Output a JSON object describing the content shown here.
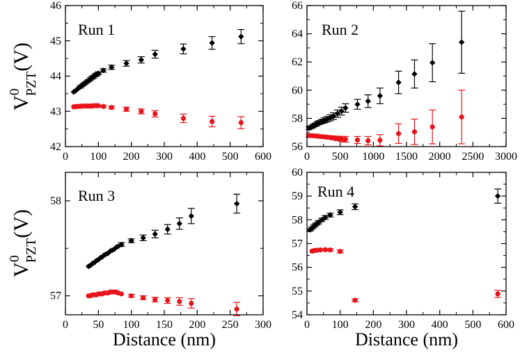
{
  "figure": {
    "x_axis_label": "Distance (nm)",
    "y_axis_label": {
      "main": "V",
      "superscript": "0",
      "subscript": "PZT",
      "unit": "(V)"
    }
  },
  "colors": {
    "series_black": "#000000",
    "series_red": "#e8141b",
    "axis": "#000000",
    "background": "#ffffff"
  },
  "chart_data": [
    {
      "type": "scatter",
      "title": "Run 1",
      "xlabel": "",
      "ylabel": "V0PZT(V)",
      "xlim": [
        0,
        600
      ],
      "ylim": [
        42,
        46
      ],
      "xticks": [
        0,
        100,
        200,
        300,
        400,
        500,
        600
      ],
      "yticks": [
        42,
        43,
        44,
        45,
        46
      ],
      "series": [
        {
          "name": "black",
          "marker": "diamond",
          "color": "#000000",
          "x": [
            25,
            30,
            35,
            40,
            45,
            50,
            55,
            60,
            65,
            70,
            75,
            80,
            85,
            90,
            95,
            100,
            115,
            140,
            185,
            230,
            272,
            358,
            445,
            533
          ],
          "y": [
            43.55,
            43.58,
            43.62,
            43.66,
            43.69,
            43.73,
            43.77,
            43.8,
            43.84,
            43.87,
            43.91,
            43.95,
            43.98,
            44.02,
            44.05,
            44.08,
            44.16,
            44.25,
            44.36,
            44.46,
            44.62,
            44.77,
            44.94,
            45.12
          ],
          "err": [
            0.02,
            0.02,
            0.02,
            0.02,
            0.03,
            0.03,
            0.03,
            0.03,
            0.03,
            0.03,
            0.04,
            0.04,
            0.04,
            0.04,
            0.04,
            0.04,
            0.05,
            0.06,
            0.08,
            0.09,
            0.11,
            0.14,
            0.18,
            0.2
          ]
        },
        {
          "name": "red",
          "marker": "circle",
          "color": "#e8141b",
          "x": [
            25,
            30,
            35,
            40,
            45,
            50,
            55,
            60,
            65,
            70,
            75,
            80,
            85,
            90,
            95,
            100,
            115,
            140,
            185,
            230,
            272,
            358,
            445,
            533
          ],
          "y": [
            43.13,
            43.13,
            43.14,
            43.14,
            43.14,
            43.15,
            43.15,
            43.15,
            43.15,
            43.15,
            43.15,
            43.15,
            43.16,
            43.16,
            43.16,
            43.16,
            43.14,
            43.11,
            43.06,
            43.0,
            42.93,
            42.8,
            42.71,
            42.68
          ],
          "err": [
            0.02,
            0.02,
            0.02,
            0.02,
            0.02,
            0.02,
            0.02,
            0.02,
            0.02,
            0.02,
            0.02,
            0.02,
            0.02,
            0.02,
            0.02,
            0.02,
            0.03,
            0.04,
            0.06,
            0.07,
            0.09,
            0.12,
            0.15,
            0.17
          ]
        }
      ]
    },
    {
      "type": "scatter",
      "title": "Run 2",
      "xlabel": "",
      "ylabel": "",
      "xlim": [
        0,
        3000
      ],
      "ylim": [
        56,
        66
      ],
      "xticks": [
        0,
        500,
        1000,
        1500,
        2000,
        2500,
        3000
      ],
      "yticks": [
        56,
        58,
        60,
        62,
        64,
        66
      ],
      "series": [
        {
          "name": "black",
          "marker": "diamond",
          "color": "#000000",
          "x": [
            30,
            60,
            90,
            120,
            150,
            180,
            220,
            260,
            300,
            350,
            400,
            460,
            520,
            580,
            760,
            920,
            1100,
            1380,
            1620,
            1890,
            2330
          ],
          "y": [
            57.3,
            57.38,
            57.46,
            57.54,
            57.62,
            57.7,
            57.78,
            57.86,
            57.94,
            58.04,
            58.16,
            58.34,
            58.52,
            58.74,
            59.0,
            59.22,
            59.6,
            60.55,
            61.15,
            61.95,
            63.4
          ],
          "err": [
            0.1,
            0.1,
            0.12,
            0.12,
            0.14,
            0.14,
            0.16,
            0.18,
            0.2,
            0.22,
            0.24,
            0.26,
            0.28,
            0.3,
            0.35,
            0.45,
            0.55,
            0.8,
            1.0,
            1.35,
            2.2
          ]
        },
        {
          "name": "red",
          "marker": "circle",
          "color": "#e8141b",
          "x": [
            30,
            60,
            90,
            120,
            150,
            180,
            220,
            260,
            300,
            350,
            400,
            460,
            520,
            580,
            760,
            920,
            1100,
            1380,
            1620,
            1890,
            2330
          ],
          "y": [
            56.78,
            56.78,
            56.77,
            56.76,
            56.75,
            56.73,
            56.71,
            56.69,
            56.67,
            56.65,
            56.62,
            56.58,
            56.55,
            56.52,
            56.47,
            56.42,
            56.45,
            56.92,
            57.05,
            57.4,
            58.1
          ],
          "err": [
            0.1,
            0.1,
            0.1,
            0.1,
            0.1,
            0.1,
            0.1,
            0.1,
            0.12,
            0.12,
            0.14,
            0.16,
            0.18,
            0.2,
            0.25,
            0.3,
            0.4,
            0.7,
            0.9,
            1.2,
            1.9
          ]
        }
      ]
    },
    {
      "type": "scatter",
      "title": "Run 3",
      "xlabel": "Distance (nm)",
      "ylabel": "V0PZT(V)",
      "xlim": [
        0,
        300
      ],
      "ylim": [
        56.8,
        58.3
      ],
      "xticks": [
        0,
        50,
        100,
        150,
        200,
        250,
        300
      ],
      "yticks": [
        57,
        58
      ],
      "series": [
        {
          "name": "black",
          "marker": "diamond",
          "color": "#000000",
          "x": [
            35,
            38,
            41,
            44,
            47,
            50,
            53,
            56,
            59,
            62,
            65,
            68,
            71,
            74,
            77,
            80,
            85,
            100,
            118,
            136,
            155,
            173,
            191,
            260
          ],
          "y": [
            57.31,
            57.32,
            57.34,
            57.35,
            57.37,
            57.38,
            57.4,
            57.41,
            57.43,
            57.44,
            57.45,
            57.47,
            57.48,
            57.49,
            57.51,
            57.52,
            57.54,
            57.58,
            57.61,
            57.65,
            57.7,
            57.76,
            57.84,
            57.97
          ],
          "err": [
            0.01,
            0.01,
            0.01,
            0.01,
            0.01,
            0.01,
            0.01,
            0.01,
            0.01,
            0.01,
            0.01,
            0.01,
            0.01,
            0.01,
            0.01,
            0.01,
            0.02,
            0.02,
            0.03,
            0.04,
            0.05,
            0.06,
            0.08,
            0.1
          ]
        },
        {
          "name": "red",
          "marker": "circle",
          "color": "#e8141b",
          "x": [
            35,
            38,
            41,
            44,
            47,
            50,
            53,
            56,
            59,
            62,
            65,
            68,
            71,
            74,
            77,
            80,
            85,
            100,
            118,
            136,
            155,
            173,
            191,
            260
          ],
          "y": [
            57.0,
            57.0,
            57.01,
            57.01,
            57.01,
            57.02,
            57.02,
            57.02,
            57.03,
            57.03,
            57.03,
            57.04,
            57.04,
            57.04,
            57.04,
            57.03,
            57.02,
            57.0,
            56.98,
            56.96,
            56.95,
            56.94,
            56.92,
            56.86
          ],
          "err": [
            0.005,
            0.005,
            0.005,
            0.005,
            0.005,
            0.005,
            0.005,
            0.005,
            0.005,
            0.005,
            0.005,
            0.005,
            0.005,
            0.005,
            0.005,
            0.005,
            0.01,
            0.015,
            0.02,
            0.025,
            0.03,
            0.04,
            0.05,
            0.07
          ]
        }
      ]
    },
    {
      "type": "scatter",
      "title": "Run 4",
      "xlabel": "Distance (nm)",
      "ylabel": "",
      "xlim": [
        0,
        600
      ],
      "ylim": [
        54,
        60
      ],
      "xticks": [
        0,
        100,
        200,
        300,
        400,
        500,
        600
      ],
      "yticks": [
        54,
        55,
        56,
        57,
        58,
        59,
        60
      ],
      "series": [
        {
          "name": "black",
          "marker": "diamond",
          "color": "#000000",
          "x": [
            10,
            15,
            20,
            25,
            30,
            35,
            45,
            55,
            70,
            100,
            145,
            575
          ],
          "y": [
            57.58,
            57.65,
            57.72,
            57.78,
            57.84,
            57.9,
            58.0,
            58.1,
            58.2,
            58.32,
            58.55,
            59.0
          ],
          "err": [
            0.05,
            0.05,
            0.06,
            0.06,
            0.06,
            0.07,
            0.07,
            0.08,
            0.08,
            0.1,
            0.12,
            0.3
          ]
        },
        {
          "name": "red",
          "marker": "circle",
          "color": "#e8141b",
          "x": [
            15,
            20,
            25,
            30,
            40,
            55,
            70,
            100,
            145,
            575
          ],
          "y": [
            56.68,
            56.7,
            56.71,
            56.72,
            56.73,
            56.74,
            56.73,
            56.67,
            54.61,
            54.88
          ],
          "err": [
            0.04,
            0.04,
            0.04,
            0.04,
            0.04,
            0.05,
            0.05,
            0.06,
            0.06,
            0.15
          ]
        }
      ]
    }
  ]
}
